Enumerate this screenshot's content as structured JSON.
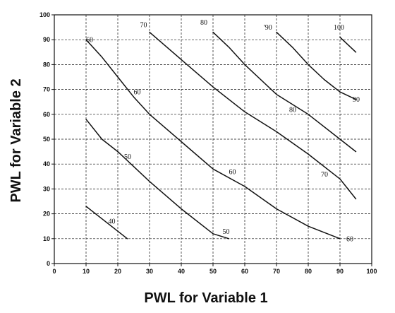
{
  "chart_data": {
    "type": "line",
    "xlabel": "PWL for Variable 1",
    "ylabel": "PWL for Variable 2",
    "xlim": [
      0,
      100
    ],
    "ylim": [
      0,
      100
    ],
    "x_ticks": [
      "0",
      "10",
      "20",
      "30",
      "40",
      "50",
      "60",
      "70",
      "80",
      "90",
      "100"
    ],
    "y_ticks": [
      "0",
      "10",
      "20",
      "30",
      "40",
      "50",
      "60",
      "70",
      "80",
      "90",
      "100"
    ],
    "grid": true,
    "series": [
      {
        "name": "40",
        "label_x": 17,
        "label_y": 16,
        "points": [
          [
            10,
            23
          ],
          [
            23,
            10
          ]
        ]
      },
      {
        "name": "50",
        "label_x": 22,
        "label_y": 42,
        "label2": "50",
        "label2_x": 53,
        "label2_y": 12,
        "points": [
          [
            10,
            58
          ],
          [
            15,
            50
          ],
          [
            20,
            45
          ],
          [
            30,
            33
          ],
          [
            40,
            22
          ],
          [
            50,
            12
          ],
          [
            55,
            10
          ]
        ]
      },
      {
        "name": "60",
        "label_x": 10,
        "label_y": 89,
        "points": [
          [
            10,
            90
          ],
          [
            15,
            83
          ],
          [
            20,
            75
          ],
          [
            25,
            67
          ],
          [
            30,
            60
          ],
          [
            40,
            49
          ],
          [
            50,
            38
          ],
          [
            60,
            31
          ],
          [
            70,
            22
          ],
          [
            80,
            15
          ],
          [
            90,
            10
          ]
        ]
      },
      {
        "name": "60",
        "label_x": 25,
        "label_y": 68,
        "label2": "60",
        "label2_x": 55,
        "label2_y": 36,
        "label3": "60",
        "label3_x": 92,
        "label3_y": 9,
        "points": []
      },
      {
        "name": "70",
        "label_x": 27,
        "label_y": 95,
        "label2": "70",
        "label2_x": 84,
        "label2_y": 35,
        "points": [
          [
            30,
            93
          ],
          [
            40,
            82
          ],
          [
            50,
            71
          ],
          [
            60,
            61
          ],
          [
            70,
            53
          ],
          [
            80,
            44
          ],
          [
            90,
            34
          ],
          [
            95,
            26
          ]
        ]
      },
      {
        "name": "80",
        "label_x": 46,
        "label_y": 96,
        "label2": "80",
        "label2_x": 74,
        "label2_y": 61,
        "points": [
          [
            50,
            93
          ],
          [
            55,
            87
          ],
          [
            60,
            80
          ],
          [
            70,
            68
          ],
          [
            80,
            60
          ],
          [
            90,
            50
          ],
          [
            95,
            45
          ]
        ]
      },
      {
        "name": "'90",
        "label_x": 66,
        "label_y": 94,
        "label2": "90",
        "label2_x": 94,
        "label2_y": 65,
        "points": [
          [
            70,
            93
          ],
          [
            75,
            87
          ],
          [
            80,
            80
          ],
          [
            85,
            74
          ],
          [
            90,
            69
          ],
          [
            95,
            66
          ]
        ]
      },
      {
        "name": "100",
        "label_x": 88,
        "label_y": 94,
        "points": [
          [
            90,
            91
          ],
          [
            95,
            85
          ]
        ]
      }
    ]
  }
}
